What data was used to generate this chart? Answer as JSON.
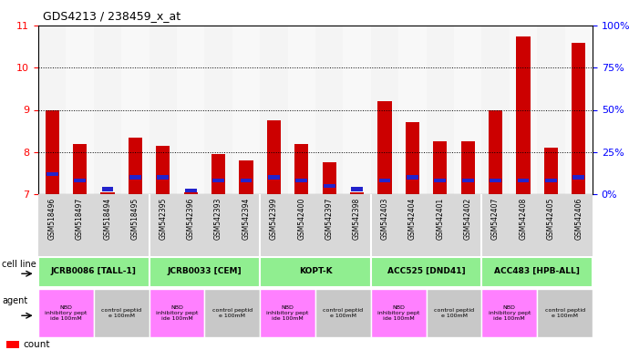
{
  "title": "GDS4213 / 238459_x_at",
  "samples": [
    "GSM518496",
    "GSM518497",
    "GSM518494",
    "GSM518495",
    "GSM542395",
    "GSM542396",
    "GSM542393",
    "GSM542394",
    "GSM542399",
    "GSM542400",
    "GSM542397",
    "GSM542398",
    "GSM542403",
    "GSM542404",
    "GSM542401",
    "GSM542402",
    "GSM542407",
    "GSM542408",
    "GSM542405",
    "GSM542406"
  ],
  "counts": [
    9.0,
    8.2,
    7.05,
    8.35,
    8.15,
    7.05,
    7.95,
    7.8,
    8.75,
    8.2,
    7.75,
    7.05,
    9.2,
    8.7,
    8.25,
    8.25,
    9.0,
    10.75,
    8.1,
    10.6
  ],
  "percentiles": [
    12,
    8,
    3,
    10,
    10,
    2,
    8,
    8,
    10,
    8,
    5,
    3,
    8,
    10,
    8,
    8,
    8,
    8,
    8,
    10
  ],
  "cell_lines": [
    {
      "label": "JCRB0086 [TALL-1]",
      "start": 0,
      "end": 4
    },
    {
      "label": "JCRB0033 [CEM]",
      "start": 4,
      "end": 8
    },
    {
      "label": "KOPT-K",
      "start": 8,
      "end": 12
    },
    {
      "label": "ACC525 [DND41]",
      "start": 12,
      "end": 16
    },
    {
      "label": "ACC483 [HPB-ALL]",
      "start": 16,
      "end": 20
    }
  ],
  "agents": [
    {
      "label": "NBD\ninhibitory pept\nide 100mM",
      "start": 0,
      "end": 2,
      "color": "#FF80FF"
    },
    {
      "label": "control peptid\ne 100mM",
      "start": 2,
      "end": 4,
      "color": "#C8C8C8"
    },
    {
      "label": "NBD\ninhibitory pept\nide 100mM",
      "start": 4,
      "end": 6,
      "color": "#FF80FF"
    },
    {
      "label": "control peptid\ne 100mM",
      "start": 6,
      "end": 8,
      "color": "#C8C8C8"
    },
    {
      "label": "NBD\ninhibitory pept\nide 100mM",
      "start": 8,
      "end": 10,
      "color": "#FF80FF"
    },
    {
      "label": "control peptid\ne 100mM",
      "start": 10,
      "end": 12,
      "color": "#C8C8C8"
    },
    {
      "label": "NBD\ninhibitory pept\nide 100mM",
      "start": 12,
      "end": 14,
      "color": "#FF80FF"
    },
    {
      "label": "control peptid\ne 100mM",
      "start": 14,
      "end": 16,
      "color": "#C8C8C8"
    },
    {
      "label": "NBD\ninhibitory pept\nide 100mM",
      "start": 16,
      "end": 18,
      "color": "#FF80FF"
    },
    {
      "label": "control peptid\ne 100mM",
      "start": 18,
      "end": 20,
      "color": "#C8C8C8"
    }
  ],
  "y_min": 7,
  "y_max": 11,
  "y_ticks_left": [
    7,
    8,
    9,
    10,
    11
  ],
  "y_ticks_right": [
    0,
    25,
    50,
    75,
    100
  ],
  "bar_color": "#CC0000",
  "percentile_color": "#2222CC",
  "cell_line_color": "#90EE90",
  "tick_label_bg": "#D8D8D8",
  "background_color": "#FFFFFF"
}
